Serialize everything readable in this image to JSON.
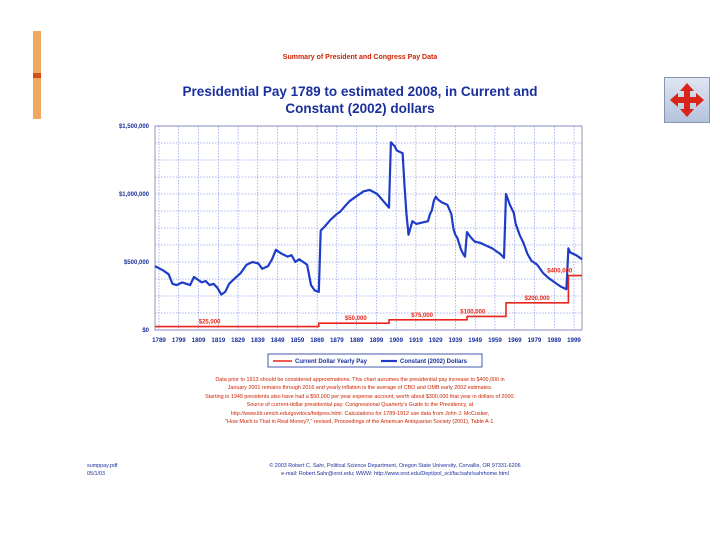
{
  "header": "Summary of President and Congress Pay Data",
  "chart_data": {
    "type": "line",
    "title_line1": "Presidential Pay 1789 to estimated 2008, in Current and",
    "title_line2": "Constant (2002) dollars",
    "xlabel": "",
    "ylabel": "",
    "xlim": [
      1789,
      2008
    ],
    "ylim": [
      0,
      1500000
    ],
    "grid": true,
    "y_ticks": [
      {
        "value": 0,
        "label": "$0"
      },
      {
        "value": 500000,
        "label": "$500,000"
      },
      {
        "value": 1000000,
        "label": "$1,000,000"
      },
      {
        "value": 1500000,
        "label": "$1,500,000"
      }
    ],
    "x_tick_labels": [
      "1789",
      "1799",
      "1809",
      "1819",
      "1829",
      "1839",
      "1849",
      "1859",
      "1869",
      "1879",
      "1889",
      "1899",
      "1909",
      "1919",
      "1929",
      "1939",
      "1949",
      "1959",
      "1969",
      "1979",
      "1989",
      "1999"
    ],
    "legend_position": "bottom",
    "series": [
      {
        "name": "Current Dollar Yearly Pay",
        "color": "#e8261b",
        "points": [
          [
            1789,
            25000
          ],
          [
            1873,
            25000
          ],
          [
            1873,
            50000
          ],
          [
            1909,
            50000
          ],
          [
            1909,
            75000
          ],
          [
            1949,
            75000
          ],
          [
            1949,
            100000
          ],
          [
            1969,
            100000
          ],
          [
            1969,
            200000
          ],
          [
            2001,
            200000
          ],
          [
            2001,
            400000
          ],
          [
            2008,
            400000
          ]
        ]
      },
      {
        "name": "Constant (2002) Dollars",
        "color": "#1e3cc8",
        "points": [
          [
            1789,
            470000
          ],
          [
            1793,
            440000
          ],
          [
            1796,
            410000
          ],
          [
            1798,
            340000
          ],
          [
            1800,
            330000
          ],
          [
            1803,
            350000
          ],
          [
            1807,
            330000
          ],
          [
            1809,
            390000
          ],
          [
            1811,
            370000
          ],
          [
            1813,
            350000
          ],
          [
            1815,
            360000
          ],
          [
            1817,
            330000
          ],
          [
            1819,
            340000
          ],
          [
            1821,
            310000
          ],
          [
            1823,
            260000
          ],
          [
            1825,
            280000
          ],
          [
            1827,
            340000
          ],
          [
            1830,
            380000
          ],
          [
            1833,
            420000
          ],
          [
            1836,
            480000
          ],
          [
            1839,
            500000
          ],
          [
            1842,
            490000
          ],
          [
            1844,
            450000
          ],
          [
            1847,
            470000
          ],
          [
            1849,
            520000
          ],
          [
            1851,
            590000
          ],
          [
            1854,
            560000
          ],
          [
            1857,
            540000
          ],
          [
            1859,
            550000
          ],
          [
            1861,
            500000
          ],
          [
            1863,
            520000
          ],
          [
            1865,
            500000
          ],
          [
            1867,
            480000
          ],
          [
            1869,
            330000
          ],
          [
            1871,
            290000
          ],
          [
            1873,
            280000
          ],
          [
            1874,
            730000
          ],
          [
            1876,
            760000
          ],
          [
            1879,
            810000
          ],
          [
            1882,
            850000
          ],
          [
            1884,
            870000
          ],
          [
            1887,
            920000
          ],
          [
            1889,
            950000
          ],
          [
            1892,
            980000
          ],
          [
            1896,
            1020000
          ],
          [
            1899,
            1030000
          ],
          [
            1903,
            1000000
          ],
          [
            1906,
            950000
          ],
          [
            1909,
            900000
          ],
          [
            1910,
            1380000
          ],
          [
            1912,
            1350000
          ],
          [
            1913,
            1320000
          ],
          [
            1916,
            1300000
          ],
          [
            1917,
            1050000
          ],
          [
            1918,
            850000
          ],
          [
            1919,
            700000
          ],
          [
            1921,
            800000
          ],
          [
            1923,
            780000
          ],
          [
            1926,
            790000
          ],
          [
            1929,
            800000
          ],
          [
            1930,
            850000
          ],
          [
            1931,
            880000
          ],
          [
            1932,
            950000
          ],
          [
            1933,
            980000
          ],
          [
            1934,
            960000
          ],
          [
            1936,
            940000
          ],
          [
            1939,
            920000
          ],
          [
            1941,
            850000
          ],
          [
            1942,
            750000
          ],
          [
            1943,
            700000
          ],
          [
            1944,
            680000
          ],
          [
            1946,
            590000
          ],
          [
            1947,
            560000
          ],
          [
            1948,
            540000
          ],
          [
            1949,
            720000
          ],
          [
            1951,
            680000
          ],
          [
            1953,
            650000
          ],
          [
            1956,
            640000
          ],
          [
            1959,
            620000
          ],
          [
            1962,
            600000
          ],
          [
            1964,
            580000
          ],
          [
            1966,
            560000
          ],
          [
            1968,
            530000
          ],
          [
            1969,
            1000000
          ],
          [
            1971,
            920000
          ],
          [
            1973,
            860000
          ],
          [
            1974,
            780000
          ],
          [
            1976,
            700000
          ],
          [
            1978,
            640000
          ],
          [
            1980,
            560000
          ],
          [
            1982,
            510000
          ],
          [
            1985,
            480000
          ],
          [
            1988,
            420000
          ],
          [
            1991,
            380000
          ],
          [
            1994,
            350000
          ],
          [
            1997,
            320000
          ],
          [
            2000,
            300000
          ],
          [
            2001,
            600000
          ],
          [
            2002,
            570000
          ],
          [
            2005,
            550000
          ],
          [
            2008,
            520000
          ]
        ]
      }
    ],
    "annotations": [
      {
        "text": "$25,000",
        "x": 1817,
        "y": 25000
      },
      {
        "text": "$50,000",
        "x": 1892,
        "y": 50000
      },
      {
        "text": "$75,000",
        "x": 1926,
        "y": 75000
      },
      {
        "text": "$100,000",
        "x": 1952,
        "y": 100000
      },
      {
        "text": "$200,000",
        "x": 1985,
        "y": 200000
      },
      {
        "text": "$400,000",
        "x": 2003,
        "y": 400000
      }
    ]
  },
  "notes": [
    "Data prior to 1913 should be considered approximations.   This chart assumes the presidential pay increase to $400,000 in",
    "January 2001 remains through 2016 and yearly inflation is the average of CBO and OMB early 2002 estimates.",
    "Starting in 1949 presidents also have had a $50,000 per year expense account, worth about $300,000 that year in dollars of 2000.",
    "Source of current-dollar presidential pay:  Congressional Quarterly's Guide to the Presidency, at",
    "http://www.lib.umich.edu/govdocs/fedpres.html.  Calculations for 1789-1912 use data from John J. McCusker,",
    "\"How Much is That in Real Money?,\" revised, Proceedings of the American Antiquarian Society (2001), Table A-1."
  ],
  "footer": {
    "file_line1": "sumppay.pdf",
    "file_line2": "05/1/03",
    "credit_line1": "© 2003 Robert C. Sahr, Political Science Department, Oregon State University, Corvallis, OR 97331-6206",
    "credit_line2": "e-mail:  Robert.Sahr@orst.edu;  WWW:  http://www.orst.edu/Dept/pol_sci/fac/sahr/sahrhome.html"
  },
  "icons": {
    "nav": "four-arrows-move-icon"
  },
  "colors": {
    "accent": "#1a2f9c",
    "red": "#e8261b",
    "blue": "#1e3cc8",
    "orange": "#f0a860"
  }
}
